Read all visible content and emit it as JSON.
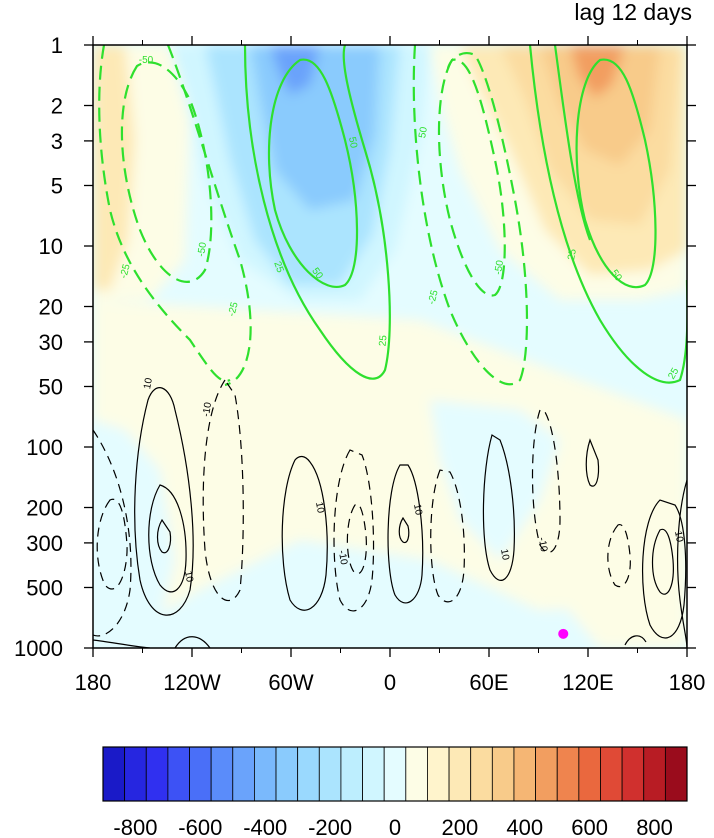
{
  "chart_data": {
    "type": "contour",
    "title": "lag 12 days",
    "x_tick_labels": [
      "180",
      "120W",
      "60W",
      "0",
      "60E",
      "120E",
      "180"
    ],
    "x_ticks_lon": [
      -180,
      -120,
      -60,
      0,
      60,
      120,
      180
    ],
    "y_tick_labels": [
      "1",
      "2",
      "3",
      "5",
      "10",
      "20",
      "30",
      "50",
      "100",
      "200",
      "300",
      "500",
      "1000"
    ],
    "y_ticks_hpa": [
      1,
      2,
      3,
      5,
      10,
      20,
      30,
      50,
      100,
      200,
      300,
      500,
      1000
    ],
    "xlim": [
      -180,
      180
    ],
    "ylim_hpa": [
      1000,
      1
    ],
    "y_scale": "log",
    "colorbar": {
      "tick_labels": [
        "-800",
        "-600",
        "-400",
        "-200",
        "0",
        "200",
        "400",
        "600",
        "800"
      ],
      "ticks": [
        -800,
        -600,
        -400,
        -200,
        0,
        200,
        400,
        600,
        800
      ],
      "colors": [
        "#1a1ac8",
        "#2626e0",
        "#3030f0",
        "#3d52f5",
        "#4a6ff8",
        "#5a8cfa",
        "#6aa3fb",
        "#7ab9fc",
        "#8acbfd",
        "#9ad9fe",
        "#abe4fe",
        "#bdeefe",
        "#d0f6ff",
        "#e4fcff",
        "#fdfde6",
        "#fff4cc",
        "#fde9b6",
        "#fbdca0",
        "#f8cb8a",
        "#f5b674",
        "#f29e60",
        "#ef844e",
        "#ea683e",
        "#e04a36",
        "#d0302e",
        "#b81c24",
        "#9a0c1c"
      ]
    },
    "green_contour_labels": [
      "-50",
      "-50",
      "-25",
      "-25",
      "50",
      "25",
      "50",
      "25",
      "50",
      "-50",
      "-25",
      "25",
      "50",
      "25"
    ],
    "black_contour_labels": [
      "10",
      "-10",
      "10",
      "10",
      "10",
      "-10",
      "10",
      "-10",
      "10"
    ],
    "marker": {
      "lon": 105,
      "hpa": 850,
      "color": "#ff00ff"
    }
  }
}
